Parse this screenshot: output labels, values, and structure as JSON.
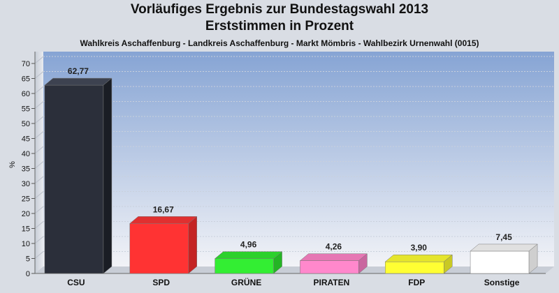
{
  "header": {
    "title_line1": "Vorläufiges Ergebnis zur Bundestagswahl 2013",
    "title_line2": "Erststimmen in Prozent",
    "subtitle": "Wahlkreis Aschaffenburg - Landkreis Aschaffenburg - Markt Mömbris - Wahlbezirk Urnenwahl (0015)"
  },
  "chart_data": {
    "type": "bar",
    "title": "Vorläufiges Ergebnis zur Bundestagswahl 2013",
    "subtitle": "Erststimmen in Prozent",
    "ylabel": "%",
    "xlabel": "",
    "ylim": [
      0,
      70
    ],
    "yticks": [
      0,
      5,
      10,
      15,
      20,
      25,
      30,
      35,
      40,
      45,
      50,
      55,
      60,
      65,
      70
    ],
    "grid": true,
    "categories": [
      "CSU",
      "SPD",
      "GRÜNE",
      "PIRATEN",
      "FDP",
      "Sonstige"
    ],
    "values": [
      62.77,
      16.67,
      4.96,
      4.26,
      3.9,
      7.45
    ],
    "value_labels": [
      "62,77",
      "16,67",
      "4,96",
      "4,26",
      "3,90",
      "7,45"
    ],
    "colors": [
      "#2b2f3a",
      "#ff3333",
      "#33ee33",
      "#ff88cc",
      "#ffff33",
      "#ffffff"
    ],
    "side_colors": [
      "#1a1d24",
      "#c42424",
      "#24b524",
      "#c9669f",
      "#c9c924",
      "#cfcfcf"
    ],
    "top_colors": [
      "#3d4250",
      "#e03030",
      "#2cd12c",
      "#e677b4",
      "#e5e52c",
      "#e0e0e0"
    ]
  }
}
